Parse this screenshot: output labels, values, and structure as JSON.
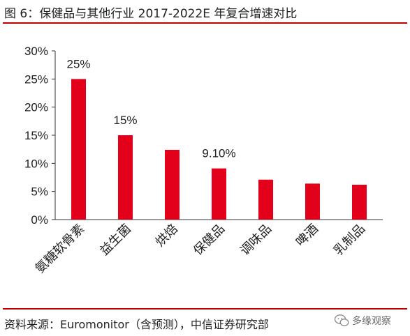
{
  "title": "图 6：保健品与其他行业 2017-2022E 年复合增速对比",
  "source": "资料来源：Euromonitor（含预测），中信证券研究部",
  "watermark": "多缘观察",
  "colors": {
    "accent": "#c00000",
    "bar": "#e2001a"
  },
  "chart_data": {
    "type": "bar",
    "title": "",
    "xlabel": "",
    "ylabel": "",
    "ylim": [
      0,
      30
    ],
    "yticks": [
      "0%",
      "5%",
      "10%",
      "15%",
      "20%",
      "25%",
      "30%"
    ],
    "categories": [
      "氨糖软骨素",
      "益生菌",
      "烘焙",
      "保健品",
      "调味品",
      "啤酒",
      "乳制品"
    ],
    "values": [
      25,
      15,
      12.4,
      9.1,
      7.1,
      6.4,
      6.2
    ],
    "data_labels": [
      "25%",
      "15%",
      "",
      "9.10%",
      "",
      "",
      ""
    ],
    "grid": false,
    "legend": "none"
  }
}
